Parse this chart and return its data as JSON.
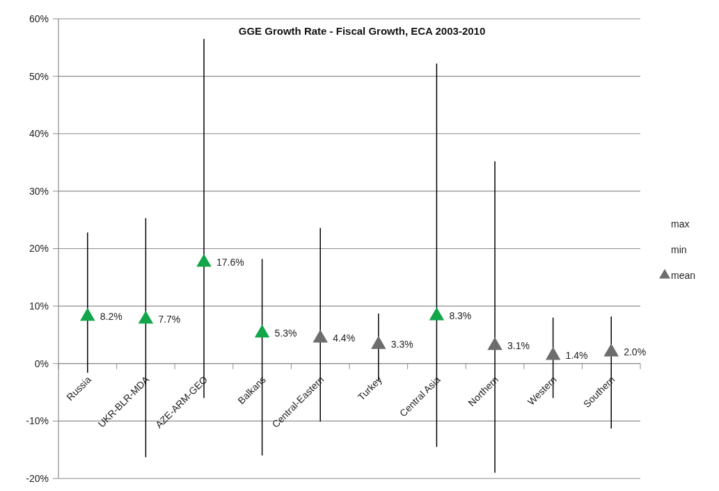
{
  "chart_data": {
    "type": "scatter",
    "title": "GGE Growth Rate - Fiscal Growth, ECA 2003-2010",
    "categories": [
      "Russia",
      "UKR-BLR-MDA",
      "AZE-ARM-GEO",
      "Balkans",
      "Central-Eastern",
      "Turkey",
      "Central Asia",
      "Northern",
      "Western",
      "Southern"
    ],
    "series": [
      {
        "name": "mean",
        "marker": "triangle",
        "color": "#6d6d6d",
        "colors": [
          "#12a54a",
          "#12a54a",
          "#12a54a",
          "#12a54a",
          "#6d6d6d",
          "#6d6d6d",
          "#12a54a",
          "#6d6d6d",
          "#6d6d6d",
          "#6d6d6d"
        ],
        "values": [
          8.2,
          7.7,
          17.6,
          5.3,
          4.4,
          3.3,
          8.3,
          3.1,
          1.4,
          2.0
        ],
        "value_labels": [
          "8.2%",
          "7.7%",
          "17.6%",
          "5.3%",
          "4.4%",
          "3.3%",
          "8.3%",
          "3.1%",
          "1.4%",
          "2.0%"
        ],
        "errors": [
          [
            -1.6,
            22.8
          ],
          [
            -16.3,
            25.3
          ],
          [
            -6.0,
            56.5
          ],
          [
            -16.0,
            18.2
          ],
          [
            -10.1,
            23.6
          ],
          [
            -2.9,
            8.7
          ],
          [
            -14.5,
            52.2
          ],
          [
            -19.0,
            35.2
          ],
          [
            -6.0,
            8.0
          ],
          [
            -11.3,
            8.2
          ]
        ]
      }
    ],
    "annotations": [
      "max",
      "min"
    ],
    "ylim": [
      -20,
      60
    ],
    "yticks": [
      {
        "value": -20,
        "label": "-20%"
      },
      {
        "value": -10,
        "label": "-10%"
      },
      {
        "value": 0,
        "label": "0%"
      },
      {
        "value": 10,
        "label": "10%"
      },
      {
        "value": 20,
        "label": "20%"
      },
      {
        "value": 30,
        "label": "30%"
      },
      {
        "value": 40,
        "label": "40%"
      },
      {
        "value": 50,
        "label": "50%"
      },
      {
        "value": 60,
        "label": "60%"
      }
    ],
    "grid": "y",
    "legend": "right"
  }
}
